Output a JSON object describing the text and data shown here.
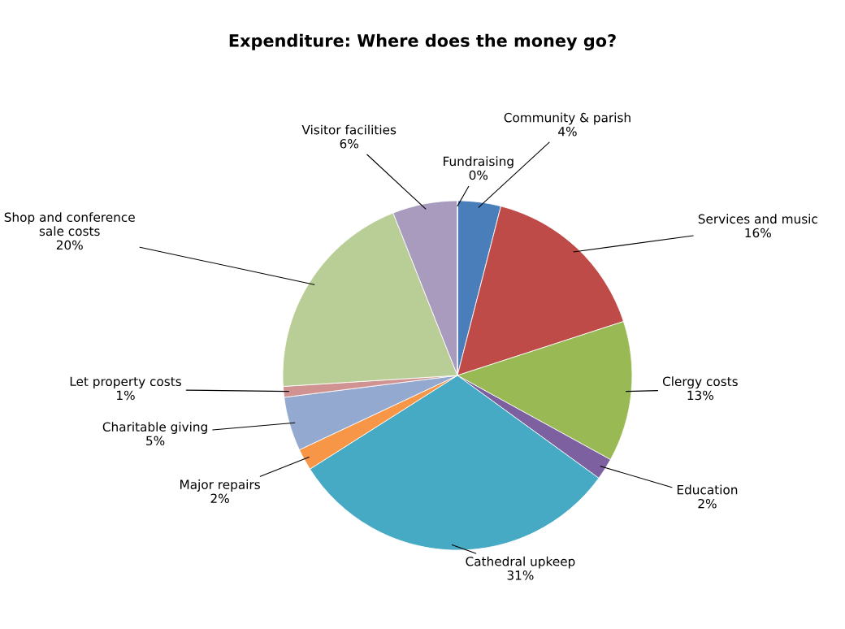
{
  "chart_data": {
    "type": "pie",
    "title": "Expenditure: Where does the money go?",
    "categories": [
      "Community & parish",
      "Services and music",
      "Clergy costs",
      "Education",
      "Cathedral upkeep",
      "Major repairs",
      "Charitable giving",
      "Let property costs",
      "Shop and conference sale costs",
      "Visitor facilities",
      "Fundraising"
    ],
    "values": [
      4,
      16,
      13,
      2,
      31,
      2,
      5,
      1,
      20,
      6,
      0
    ],
    "colors": [
      "#4a7ebb",
      "#be4b48",
      "#98b954",
      "#7d60a0",
      "#46aac5",
      "#f79646",
      "#93a9cf",
      "#d19392",
      "#b9cd96",
      "#a99bbd",
      "#92cddc"
    ],
    "value_labels": [
      "4%",
      "16%",
      "13%",
      "2%",
      "31%",
      "2%",
      "5%",
      "1%",
      "20%",
      "6%",
      "0%"
    ]
  }
}
